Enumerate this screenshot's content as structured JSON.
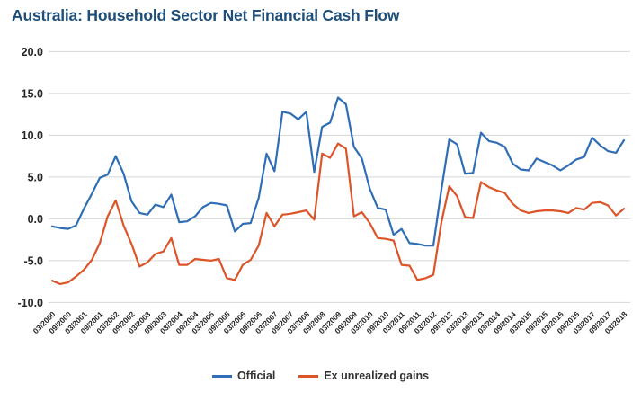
{
  "title": "Australia: Household Sector Net Financial Cash Flow",
  "colors": {
    "title_text": "#1F4E79",
    "official_line": "#2F6EB6",
    "ex_unrealized_line": "#DC5427",
    "gridline": "#D6D6D6",
    "axis_text": "#262626",
    "legend_text": "#333333",
    "background": "#FFFFFF"
  },
  "legend": {
    "items": [
      {
        "label": "Official",
        "series_id": "official"
      },
      {
        "label": "Ex unrealized gains",
        "series_id": "ex_unrealized"
      }
    ]
  },
  "chart_data": {
    "type": "line",
    "title": "Australia: Household Sector Net Financial Cash Flow",
    "grid": "horizontal",
    "legend_position": "bottom",
    "x_axis": {
      "frequency": "quarterly",
      "points_per_tick": 2,
      "tick_labels": [
        "03/2000",
        "09/2000",
        "03/2001",
        "09/2001",
        "03/2002",
        "09/2002",
        "03/2003",
        "09/2003",
        "03/2004",
        "09/2004",
        "03/2005",
        "09/2005",
        "03/2006",
        "09/2006",
        "03/2007",
        "09/2007",
        "03/2008",
        "09/2008",
        "03/2009",
        "09/2009",
        "03/2010",
        "09/2010",
        "03/2011",
        "09/2011",
        "03/2012",
        "09/2012",
        "03/2013",
        "09/2013",
        "03/2014",
        "09/2014",
        "03/2015",
        "09/2015",
        "03/2016",
        "09/2016",
        "03/2017",
        "09/2017",
        "03/2018"
      ]
    },
    "y_axis": {
      "range": [
        -10,
        20
      ],
      "ticks": [
        {
          "label": "20.0",
          "value": 20
        },
        {
          "label": "15.0",
          "value": 15
        },
        {
          "label": "10.0",
          "value": 10
        },
        {
          "label": "5.0",
          "value": 5
        },
        {
          "label": "0.0",
          "value": 0
        },
        {
          "label": "-5.0",
          "value": -5
        },
        {
          "label": "-10.0",
          "value": -10
        }
      ]
    },
    "series": [
      {
        "id": "official",
        "name": "Official",
        "color": "#2F6EB6",
        "values": [
          -0.9,
          -1.1,
          -1.2,
          -0.8,
          1.2,
          3.0,
          4.9,
          5.3,
          7.5,
          5.4,
          2.1,
          0.7,
          0.5,
          1.7,
          1.4,
          2.9,
          -0.4,
          -0.3,
          0.3,
          1.4,
          1.9,
          1.8,
          1.6,
          -1.5,
          -0.6,
          -0.5,
          2.5,
          7.8,
          5.7,
          12.8,
          12.6,
          11.9,
          12.8,
          5.6,
          11.0,
          11.5,
          14.5,
          13.7,
          8.6,
          7.2,
          3.6,
          1.3,
          1.1,
          -1.9,
          -1.2,
          -2.9,
          -3.0,
          -3.2,
          -3.2,
          3.4,
          9.5,
          8.9,
          5.4,
          5.5,
          10.3,
          9.3,
          9.1,
          8.6,
          6.6,
          5.9,
          5.8,
          7.2,
          6.8,
          6.4,
          5.8,
          6.4,
          7.1,
          7.4,
          9.7,
          8.8,
          8.1,
          7.9,
          9.4
        ]
      },
      {
        "id": "ex_unrealized",
        "name": "Ex unrealized gains",
        "color": "#DC5427",
        "values": [
          -7.4,
          -7.8,
          -7.6,
          -6.9,
          -6.1,
          -4.9,
          -2.9,
          0.3,
          2.2,
          -0.8,
          -3.0,
          -5.7,
          -5.2,
          -4.2,
          -3.9,
          -2.3,
          -5.5,
          -5.5,
          -4.8,
          -4.9,
          -5.0,
          -4.8,
          -7.1,
          -7.3,
          -5.5,
          -4.9,
          -3.2,
          0.7,
          -0.9,
          0.5,
          0.6,
          0.8,
          1.0,
          -0.1,
          7.8,
          7.3,
          9.0,
          8.4,
          0.3,
          0.8,
          -0.5,
          -2.3,
          -2.4,
          -2.6,
          -5.5,
          -5.6,
          -7.3,
          -7.1,
          -6.7,
          -0.5,
          3.9,
          2.7,
          0.2,
          0.1,
          4.4,
          3.8,
          3.4,
          3.1,
          1.8,
          1.0,
          0.7,
          0.9,
          1.0,
          1.0,
          0.9,
          0.7,
          1.3,
          1.1,
          1.9,
          2.0,
          1.6,
          0.4,
          1.2
        ]
      }
    ]
  }
}
